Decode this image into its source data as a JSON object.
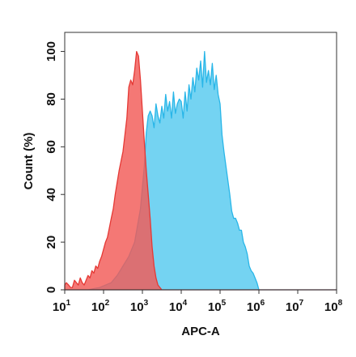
{
  "chart_data": {
    "type": "area",
    "title": "",
    "xlabel": "APC-A",
    "ylabel": "Count (%)",
    "x_scale": "log10",
    "xlim": [
      10,
      100000000
    ],
    "ylim": [
      0,
      108
    ],
    "grid": false,
    "x_ticks": [
      {
        "value": 10,
        "base": "10",
        "exp": "1"
      },
      {
        "value": 100,
        "base": "10",
        "exp": "2"
      },
      {
        "value": 1000,
        "base": "10",
        "exp": "3"
      },
      {
        "value": 10000,
        "base": "10",
        "exp": "4"
      },
      {
        "value": 100000,
        "base": "10",
        "exp": "5"
      },
      {
        "value": 1000000,
        "base": "10",
        "exp": "6"
      },
      {
        "value": 10000000,
        "base": "10",
        "exp": "7"
      },
      {
        "value": 100000000,
        "base": "10",
        "exp": "8"
      }
    ],
    "y_ticks": [
      0,
      20,
      40,
      60,
      80,
      100
    ],
    "series": [
      {
        "color": "#29b6e8",
        "fill": "#5ccbf0",
        "fill_opacity": 0.85,
        "x": [
          10,
          14,
          20,
          28,
          40,
          56,
          80,
          112,
          158,
          224,
          316,
          447,
          631,
          891,
          1122,
          1259,
          1413,
          1585,
          1778,
          1995,
          2239,
          2512,
          2818,
          3162,
          3548,
          3981,
          4467,
          5012,
          5623,
          6310,
          7079,
          7943,
          8913,
          10000,
          11220,
          12589,
          14125,
          15849,
          17783,
          19953,
          22387,
          25119,
          28184,
          31623,
          35481,
          39811,
          44668,
          50119,
          56234,
          63096,
          70795,
          79433,
          89125,
          100000,
          112202,
          125893,
          141254,
          158489,
          177828,
          199526,
          223872,
          251189,
          281838,
          316228,
          354813,
          398107,
          446684,
          501187,
          562341,
          630957,
          707946,
          794328,
          891251,
          1000000,
          1258925,
          1584893,
          2000000,
          10000000,
          100000000
        ],
        "y": [
          0,
          0,
          0,
          0,
          0,
          0.5,
          1,
          2,
          3,
          6,
          10,
          14,
          20,
          34,
          52,
          66,
          73,
          75,
          73,
          68,
          78,
          73,
          70,
          77,
          72,
          82,
          75,
          79,
          72,
          83,
          74,
          78,
          80,
          79,
          72,
          83,
          75,
          86,
          80,
          89,
          83,
          93,
          88,
          96,
          85,
          100,
          87,
          92,
          86,
          95,
          84,
          90,
          82,
          78,
          65,
          58,
          52,
          46,
          40,
          33,
          30,
          30,
          28,
          25,
          25,
          20,
          18,
          15,
          10,
          8,
          7,
          5,
          3,
          0,
          0,
          0,
          0,
          0,
          0
        ]
      },
      {
        "color": "#e53935",
        "fill": "#f25a57",
        "fill_opacity": 0.82,
        "x": [
          10,
          11,
          12.6,
          14.1,
          15.8,
          17.8,
          20,
          22.4,
          25.1,
          28.2,
          31.6,
          35.5,
          39.8,
          44.7,
          50.1,
          56.2,
          63.1,
          70.8,
          79.4,
          89.1,
          100,
          112,
          126,
          141,
          158,
          178,
          200,
          224,
          251,
          282,
          316,
          355,
          398,
          447,
          501,
          562,
          631,
          708,
          794,
          891,
          1000,
          1122,
          1259,
          1413,
          1585,
          1778,
          1995,
          2239,
          2512,
          3162,
          10000,
          100000000
        ],
        "y": [
          2,
          3,
          2,
          1,
          1,
          4,
          3,
          2,
          5,
          3,
          2,
          4,
          6,
          5,
          8,
          7,
          10,
          9,
          12,
          14,
          17,
          20,
          22,
          26,
          30,
          34,
          40,
          45,
          50,
          54,
          58,
          65,
          72,
          85,
          88,
          86,
          92,
          100,
          98,
          88,
          75,
          62,
          50,
          40,
          30,
          18,
          10,
          5,
          2,
          0,
          0,
          0
        ]
      }
    ]
  }
}
